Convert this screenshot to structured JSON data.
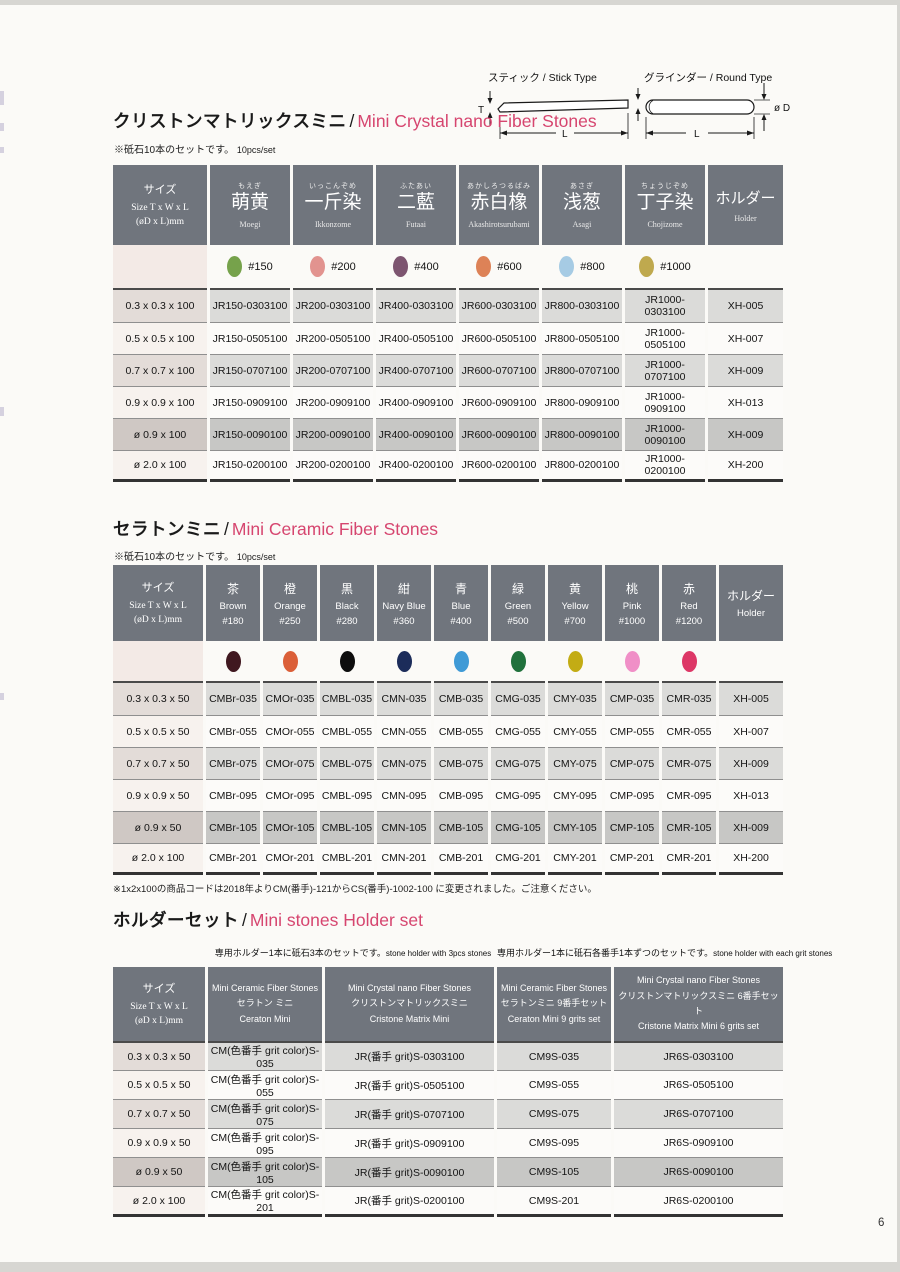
{
  "page": {
    "number": "6"
  },
  "colors": {
    "accent": "#d6456f",
    "header_bg": "#70757d"
  },
  "diagrams": {
    "stick": {
      "label": "スティック / Stick Type",
      "t": "T",
      "w": "W",
      "l": "L"
    },
    "round": {
      "label": "グラインダー / Round Type",
      "d": "ø D",
      "l": "L"
    }
  },
  "section1": {
    "title_jp": "クリストンマトリックスミニ",
    "divider": "/",
    "title_en": "Mini Crystal nano Fiber Stones",
    "note_jp": "※砥石10本のセットです。",
    "note_en": "10pcs/set",
    "table": {
      "size_header": {
        "l1": "サイズ",
        "l2": "Size T x W x L",
        "l3": "(øD x L)mm"
      },
      "holder_header": {
        "jp": "ホルダー",
        "en": "Holder"
      },
      "columns": [
        {
          "furigana": "もえぎ",
          "kanji": "萌黄",
          "romaji": "Moegi",
          "grit": "#150",
          "color": "#76a24b"
        },
        {
          "furigana": "いっこんぞめ",
          "kanji": "一斤染",
          "romaji": "Ikkonzome",
          "grit": "#200",
          "color": "#e2938f"
        },
        {
          "furigana": "ふたあい",
          "kanji": "二藍",
          "romaji": "Futaai",
          "grit": "#400",
          "color": "#7d5570"
        },
        {
          "furigana": "あかしろつるばみ",
          "kanji": "赤白橡",
          "romaji": "Akashirotsurubami",
          "grit": "#600",
          "color": "#dd8257"
        },
        {
          "furigana": "あさぎ",
          "kanji": "浅葱",
          "romaji": "Asagi",
          "grit": "#800",
          "color": "#a6cbe4"
        },
        {
          "furigana": "ちょうじぞめ",
          "kanji": "丁子染",
          "romaji": "Chojizome",
          "grit": "#1000",
          "color": "#bfa94e"
        }
      ],
      "rows": [
        {
          "size": "0.3 x 0.3 x 100",
          "codes": [
            "JR150-0303100",
            "JR200-0303100",
            "JR400-0303100",
            "JR600-0303100",
            "JR800-0303100",
            "JR1000-0303100"
          ],
          "holder": "XH-005",
          "shade": "light"
        },
        {
          "size": "0.5 x 0.5 x 100",
          "codes": [
            "JR150-0505100",
            "JR200-0505100",
            "JR400-0505100",
            "JR600-0505100",
            "JR800-0505100",
            "JR1000-0505100"
          ],
          "holder": "XH-007",
          "shade": "none"
        },
        {
          "size": "0.7 x 0.7 x 100",
          "codes": [
            "JR150-0707100",
            "JR200-0707100",
            "JR400-0707100",
            "JR600-0707100",
            "JR800-0707100",
            "JR1000-0707100"
          ],
          "holder": "XH-009",
          "shade": "light"
        },
        {
          "size": "0.9 x 0.9 x 100",
          "codes": [
            "JR150-0909100",
            "JR200-0909100",
            "JR400-0909100",
            "JR600-0909100",
            "JR800-0909100",
            "JR1000-0909100"
          ],
          "holder": "XH-013",
          "shade": "none"
        },
        {
          "size": "ø 0.9 x 100",
          "codes": [
            "JR150-0090100",
            "JR200-0090100",
            "JR400-0090100",
            "JR600-0090100",
            "JR800-0090100",
            "JR1000-0090100"
          ],
          "holder": "XH-009",
          "shade": "dark"
        },
        {
          "size": "ø 2.0 x 100",
          "codes": [
            "JR150-0200100",
            "JR200-0200100",
            "JR400-0200100",
            "JR600-0200100",
            "JR800-0200100",
            "JR1000-0200100"
          ],
          "holder": "XH-200",
          "shade": "none"
        }
      ]
    }
  },
  "section2": {
    "title_jp": "セラトンミニ",
    "divider": "/",
    "title_en": "Mini Ceramic Fiber Stones",
    "note_jp": "※砥石10本のセットです。",
    "note_en": "10pcs/set",
    "footnote": "※1x2x100の商品コードは2018年よりCM(番手)-121からCS(番手)-1002-100 に変更されました。ご注意ください。",
    "table": {
      "size_header": {
        "l1": "サイズ",
        "l2": "Size T x W x L",
        "l3": "(øD x L)mm"
      },
      "holder_header": {
        "jp": "ホルダー",
        "en": "Holder"
      },
      "columns": [
        {
          "kanji": "茶",
          "en": "Brown",
          "grit": "#180",
          "color": "#401820"
        },
        {
          "kanji": "橙",
          "en": "Orange",
          "grit": "#250",
          "color": "#db5f38"
        },
        {
          "kanji": "黒",
          "en": "Black",
          "grit": "#280",
          "color": "#0d0d0d"
        },
        {
          "kanji": "紺",
          "en": "Navy Blue",
          "grit": "#360",
          "color": "#1c2c5a"
        },
        {
          "kanji": "青",
          "en": "Blue",
          "grit": "#400",
          "color": "#3f9ad6"
        },
        {
          "kanji": "緑",
          "en": "Green",
          "grit": "#500",
          "color": "#20713c"
        },
        {
          "kanji": "黄",
          "en": "Yellow",
          "grit": "#700",
          "color": "#c3ac14"
        },
        {
          "kanji": "桃",
          "en": "Pink",
          "grit": "#1000",
          "color": "#f08fc7"
        },
        {
          "kanji": "赤",
          "en": "Red",
          "grit": "#1200",
          "color": "#dd3766"
        }
      ],
      "rows": [
        {
          "size": "0.3 x 0.3 x 50",
          "codes": [
            "CMBr-035",
            "CMOr-035",
            "CMBL-035",
            "CMN-035",
            "CMB-035",
            "CMG-035",
            "CMY-035",
            "CMP-035",
            "CMR-035"
          ],
          "holder": "XH-005",
          "shade": "light"
        },
        {
          "size": "0.5 x 0.5 x 50",
          "codes": [
            "CMBr-055",
            "CMOr-055",
            "CMBL-055",
            "CMN-055",
            "CMB-055",
            "CMG-055",
            "CMY-055",
            "CMP-055",
            "CMR-055"
          ],
          "holder": "XH-007",
          "shade": "none"
        },
        {
          "size": "0.7 x 0.7 x 50",
          "codes": [
            "CMBr-075",
            "CMOr-075",
            "CMBL-075",
            "CMN-075",
            "CMB-075",
            "CMG-075",
            "CMY-075",
            "CMP-075",
            "CMR-075"
          ],
          "holder": "XH-009",
          "shade": "light"
        },
        {
          "size": "0.9 x 0.9 x 50",
          "codes": [
            "CMBr-095",
            "CMOr-095",
            "CMBL-095",
            "CMN-095",
            "CMB-095",
            "CMG-095",
            "CMY-095",
            "CMP-095",
            "CMR-095"
          ],
          "holder": "XH-013",
          "shade": "none"
        },
        {
          "size": "ø 0.9 x 50",
          "codes": [
            "CMBr-105",
            "CMOr-105",
            "CMBL-105",
            "CMN-105",
            "CMB-105",
            "CMG-105",
            "CMY-105",
            "CMP-105",
            "CMR-105"
          ],
          "holder": "XH-009",
          "shade": "dark"
        },
        {
          "size": "ø 2.0 x 100",
          "codes": [
            "CMBr-201",
            "CMOr-201",
            "CMBL-201",
            "CMN-201",
            "CMB-201",
            "CMG-201",
            "CMY-201",
            "CMP-201",
            "CMR-201"
          ],
          "holder": "XH-200",
          "shade": "none"
        }
      ]
    }
  },
  "section3": {
    "title_jp": "ホルダーセット",
    "divider": "/",
    "title_en": "Mini stones Holder set",
    "caption_left_jp": "専用ホルダー1本に砥石3本のセットです。",
    "caption_left_en": "stone holder with 3pcs stones",
    "caption_right_jp": "専用ホルダー1本に砥石各番手1本ずつのセットです。",
    "caption_right_en": "stone holder with each grit stones",
    "table": {
      "size_header": {
        "l1": "サイズ",
        "l2": "Size T x W x L",
        "l3": "(øD x L)mm"
      },
      "columns": [
        {
          "line1": "Mini Ceramic Fiber Stones",
          "line2": "セラトン ミニ",
          "line3": "Ceraton Mini"
        },
        {
          "line1": "Mini Crystal nano Fiber Stones",
          "line2": "クリストンマトリックスミニ",
          "line3": "Cristone Matrix Mini"
        },
        {
          "line1": "Mini Ceramic Fiber Stones",
          "line2": "セラトンミニ 9番手セット",
          "line3": "Ceraton Mini 9 grits set"
        },
        {
          "line1": "Mini Crystal nano Fiber Stones",
          "line2": "クリストンマトリックスミニ 6番手セット",
          "line3": "Cristone Matrix Mini 6 grits set"
        }
      ],
      "rows": [
        {
          "size": "0.3 x 0.3 x 50",
          "codes": [
            "CM(色番手 grit color)S-035",
            "JR(番手 grit)S-0303100",
            "CM9S-035",
            "JR6S-0303100"
          ],
          "shade": "light"
        },
        {
          "size": "0.5 x 0.5 x 50",
          "codes": [
            "CM(色番手 grit color)S-055",
            "JR(番手 grit)S-0505100",
            "CM9S-055",
            "JR6S-0505100"
          ],
          "shade": "none"
        },
        {
          "size": "0.7 x 0.7 x 50",
          "codes": [
            "CM(色番手 grit color)S-075",
            "JR(番手 grit)S-0707100",
            "CM9S-075",
            "JR6S-0707100"
          ],
          "shade": "light"
        },
        {
          "size": "0.9 x 0.9 x 50",
          "codes": [
            "CM(色番手 grit color)S-095",
            "JR(番手 grit)S-0909100",
            "CM9S-095",
            "JR6S-0909100"
          ],
          "shade": "none"
        },
        {
          "size": "ø 0.9 x 50",
          "codes": [
            "CM(色番手 grit color)S-105",
            "JR(番手 grit)S-0090100",
            "CM9S-105",
            "JR6S-0090100"
          ],
          "shade": "dark"
        },
        {
          "size": "ø 2.0 x 100",
          "codes": [
            "CM(色番手 grit color)S-201",
            "JR(番手 grit)S-0200100",
            "CM9S-201",
            "JR6S-0200100"
          ],
          "shade": "none"
        }
      ]
    }
  }
}
